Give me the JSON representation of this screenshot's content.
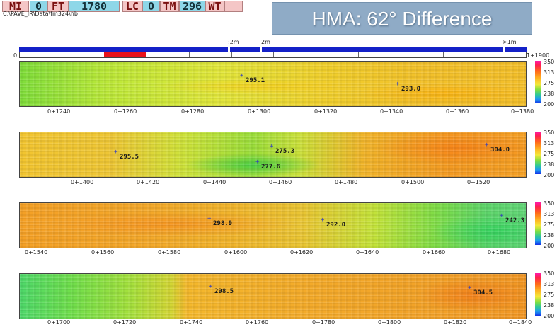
{
  "header": {
    "readouts": [
      {
        "label": "MI",
        "value": "0"
      },
      {
        "label": "FT",
        "value": "1780"
      },
      {
        "label": "LC",
        "value": "0"
      },
      {
        "label": "TM",
        "value": "296"
      },
      {
        "label": "WT",
        "value": ""
      }
    ],
    "path": "C:\\PAVE_IR\\Data\\fm324\\nb",
    "title": "HMA: 62° Difference"
  },
  "overview": {
    "start_label": "0",
    "end_label": "1+1900",
    "markers": [
      ":2m",
      "2m",
      ">1m"
    ]
  },
  "scale": {
    "labels": [
      "350",
      "313",
      "275",
      "238",
      "200"
    ],
    "colors": {
      "max": "#ff1aa8",
      "mid": "#f4e83a",
      "min": "#1431e8"
    }
  },
  "strips": [
    {
      "ticks": [
        "0+1240",
        "0+1260",
        "0+1280",
        "0+1300",
        "0+1320",
        "0+1340",
        "0+1360",
        "0+1380"
      ],
      "annotations": [
        "295.1",
        "293.0"
      ]
    },
    {
      "ticks": [
        "0+1400",
        "0+1420",
        "0+1440",
        "0+1460",
        "0+1480",
        "0+1500",
        "0+1520"
      ],
      "annotations": [
        "295.5",
        "275.3",
        "277.6",
        "304.0"
      ]
    },
    {
      "ticks": [
        "0+1540",
        "0+1560",
        "0+1580",
        "0+1600",
        "0+1620",
        "0+1640",
        "0+1660",
        "0+1680"
      ],
      "annotations": [
        "298.9",
        "292.0",
        "242.3"
      ]
    },
    {
      "ticks": [
        "0+1700",
        "0+1720",
        "0+1740",
        "0+1760",
        "0+1780",
        "0+1800",
        "0+1820",
        "0+1840"
      ],
      "annotations": [
        "298.5",
        "304.5"
      ]
    }
  ]
}
